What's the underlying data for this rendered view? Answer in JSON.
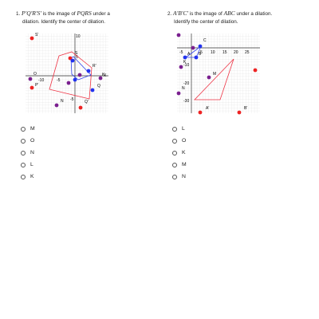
{
  "questions": [
    {
      "number": "1.",
      "image_math": "P′Q′R′S′",
      "middle_text": "is the image of",
      "pre_math": "PQRS",
      "tail_text": "under a",
      "line2": "dilation. Identify the center of dilation.",
      "axis_ticks": [
        "-10",
        "-5",
        "5",
        "10",
        "-5",
        "5",
        "10"
      ],
      "axis_x_label": "X",
      "point_labels": [
        "S'",
        "R'",
        "S",
        "R",
        "P",
        "P'",
        "Q",
        "N",
        "Q'",
        "O",
        "K"
      ],
      "choices": [
        "M",
        "O",
        "N",
        "L",
        "K"
      ]
    },
    {
      "number": "2.",
      "image_math": "A′B′C′",
      "middle_text": "is the image of",
      "pre_math": "ABC",
      "tail_text": "under a dilation.",
      "line2": "Identify the center of dilation.",
      "axis_ticks": [
        "-5",
        "5",
        "10",
        "15",
        "20",
        "25",
        "-10",
        "-20",
        "-30"
      ],
      "point_labels": [
        "C",
        "A",
        "B",
        "K",
        "N",
        "M",
        "A'",
        "B'"
      ],
      "choices": [
        "L",
        "O",
        "K",
        "M",
        "N"
      ]
    }
  ],
  "colors": {
    "red_point": "#ee2222",
    "purple_point": "#7a1f8f",
    "blue_point": "#2233ee",
    "image_polygon": "#ee3344",
    "pre_polygon": "#3344ee"
  }
}
